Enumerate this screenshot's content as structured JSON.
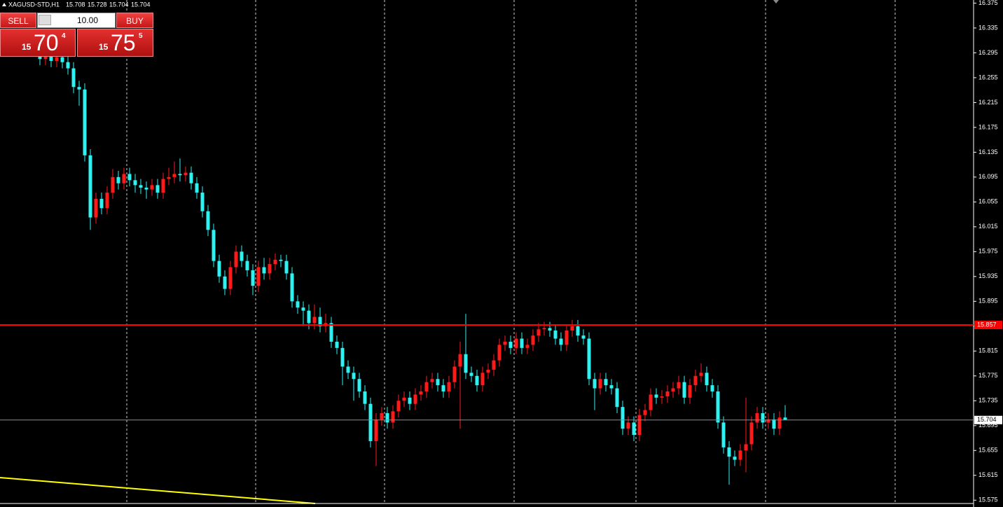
{
  "chart_data": {
    "type": "candlestick",
    "title": "XAGUSD-STD,H1",
    "open": [
      16.29,
      16.285,
      16.29,
      16.282,
      16.288,
      16.28,
      16.27,
      16.24,
      16.236,
      16.13,
      16.03,
      16.06,
      16.045,
      16.07,
      16.095,
      16.085,
      16.1,
      16.09,
      16.082,
      16.078,
      16.075,
      16.082,
      16.07,
      16.092,
      16.095,
      16.1,
      16.098,
      16.102,
      16.085,
      16.07,
      16.04,
      16.01,
      15.96,
      15.935,
      15.915,
      15.95,
      15.975,
      15.96,
      15.945,
      15.92,
      15.95,
      15.94,
      15.955,
      15.962,
      15.96,
      15.94,
      15.895,
      15.885,
      15.88,
      15.86,
      15.87,
      15.855,
      15.86,
      15.83,
      15.82,
      15.79,
      15.78,
      15.77,
      15.75,
      15.73,
      15.67,
      15.705,
      15.715,
      15.7,
      15.718,
      15.735,
      15.74,
      15.73,
      15.745,
      15.75,
      15.765,
      15.77,
      15.76,
      15.75,
      15.765,
      15.79,
      15.81,
      15.78,
      15.775,
      15.76,
      15.78,
      15.785,
      15.8,
      15.825,
      15.83,
      15.82,
      15.835,
      15.82,
      15.825,
      15.84,
      15.85,
      15.852,
      15.848,
      15.835,
      15.825,
      15.848,
      15.855,
      15.84,
      15.835,
      15.77,
      15.755,
      15.77,
      15.76,
      15.755,
      15.725,
      15.69,
      15.7,
      15.68,
      15.712,
      15.72,
      15.745,
      15.74,
      15.742,
      15.75,
      15.755,
      15.765,
      15.74,
      15.76,
      15.775,
      15.78,
      15.76,
      15.75,
      15.7,
      15.66,
      15.645,
      15.64,
      15.655,
      15.665,
      15.7,
      15.715,
      15.7,
      15.705,
      15.69,
      15.708
    ],
    "high": [
      16.3,
      16.3,
      16.3,
      16.298,
      16.298,
      16.29,
      16.28,
      16.25,
      16.246,
      16.14,
      16.07,
      16.07,
      16.08,
      16.108,
      16.105,
      16.11,
      16.11,
      16.1,
      16.092,
      16.088,
      16.092,
      16.092,
      16.102,
      16.11,
      16.12,
      16.125,
      16.112,
      16.112,
      16.095,
      16.08,
      16.05,
      16.02,
      15.97,
      15.945,
      15.96,
      15.985,
      15.985,
      15.97,
      15.955,
      15.96,
      15.965,
      15.965,
      15.972,
      15.97,
      15.97,
      15.95,
      15.905,
      15.895,
      15.89,
      15.89,
      15.885,
      15.875,
      15.87,
      15.84,
      15.83,
      15.8,
      15.79,
      15.78,
      15.76,
      15.74,
      15.715,
      15.725,
      15.725,
      15.728,
      15.745,
      15.75,
      15.75,
      15.755,
      15.76,
      15.775,
      15.78,
      15.78,
      15.77,
      15.775,
      15.8,
      15.83,
      15.875,
      15.79,
      15.785,
      15.79,
      15.795,
      15.81,
      15.835,
      15.84,
      15.84,
      15.845,
      15.845,
      15.835,
      15.85,
      15.86,
      15.862,
      15.862,
      15.858,
      15.845,
      15.858,
      15.865,
      15.865,
      15.85,
      15.845,
      15.78,
      15.78,
      15.78,
      15.77,
      15.765,
      15.735,
      15.71,
      15.71,
      15.722,
      15.73,
      15.755,
      15.755,
      15.752,
      15.76,
      15.765,
      15.775,
      15.775,
      15.77,
      15.785,
      15.795,
      15.79,
      15.77,
      15.76,
      15.71,
      15.67,
      15.655,
      15.665,
      15.74,
      15.71,
      15.725,
      15.725,
      15.715,
      15.715,
      15.718,
      15.728
    ],
    "low": [
      16.275,
      16.275,
      16.272,
      16.272,
      16.27,
      16.26,
      16.23,
      16.21,
      16.12,
      16.01,
      16.02,
      16.035,
      16.035,
      16.06,
      16.075,
      16.075,
      16.08,
      16.07,
      16.068,
      16.06,
      16.065,
      16.06,
      16.06,
      16.082,
      16.085,
      16.088,
      16.088,
      16.075,
      16.06,
      16.03,
      16.0,
      15.95,
      15.925,
      15.905,
      15.905,
      15.94,
      15.95,
      15.935,
      15.905,
      15.91,
      15.93,
      15.93,
      15.945,
      15.95,
      15.93,
      15.885,
      15.875,
      15.855,
      15.85,
      15.85,
      15.845,
      15.845,
      15.82,
      15.81,
      15.76,
      15.77,
      15.735,
      15.74,
      15.72,
      15.66,
      15.63,
      15.695,
      15.69,
      15.69,
      15.708,
      15.725,
      15.72,
      15.72,
      15.735,
      15.74,
      15.755,
      15.75,
      15.74,
      15.74,
      15.755,
      15.69,
      15.77,
      15.765,
      15.75,
      15.75,
      15.77,
      15.775,
      15.79,
      15.815,
      15.81,
      15.81,
      15.81,
      15.81,
      15.815,
      15.83,
      15.84,
      15.838,
      15.825,
      15.815,
      15.815,
      15.838,
      15.83,
      15.825,
      15.76,
      15.72,
      15.745,
      15.75,
      15.745,
      15.715,
      15.68,
      15.68,
      15.67,
      15.67,
      15.702,
      15.71,
      15.73,
      15.73,
      15.732,
      15.74,
      15.745,
      15.73,
      15.73,
      15.75,
      15.765,
      15.75,
      15.74,
      15.69,
      15.65,
      15.6,
      15.63,
      15.63,
      15.62,
      15.655,
      15.69,
      15.69,
      15.69,
      15.68,
      15.68,
      15.704
    ],
    "close": [
      16.285,
      16.29,
      16.282,
      16.288,
      16.28,
      16.27,
      16.24,
      16.236,
      16.13,
      16.03,
      16.06,
      16.045,
      16.07,
      16.095,
      16.085,
      16.1,
      16.09,
      16.082,
      16.078,
      16.075,
      16.082,
      16.07,
      16.092,
      16.095,
      16.1,
      16.098,
      16.102,
      16.085,
      16.07,
      16.04,
      16.01,
      15.96,
      15.935,
      15.915,
      15.95,
      15.975,
      15.96,
      15.945,
      15.92,
      15.95,
      15.94,
      15.955,
      15.962,
      15.96,
      15.94,
      15.895,
      15.885,
      15.88,
      15.86,
      15.87,
      15.855,
      15.86,
      15.83,
      15.82,
      15.79,
      15.78,
      15.77,
      15.75,
      15.73,
      15.67,
      15.705,
      15.715,
      15.7,
      15.718,
      15.735,
      15.74,
      15.73,
      15.745,
      15.75,
      15.765,
      15.77,
      15.76,
      15.75,
      15.765,
      15.79,
      15.81,
      15.78,
      15.775,
      15.76,
      15.78,
      15.785,
      15.8,
      15.825,
      15.83,
      15.82,
      15.835,
      15.82,
      15.825,
      15.84,
      15.85,
      15.852,
      15.848,
      15.835,
      15.825,
      15.848,
      15.855,
      15.84,
      15.835,
      15.77,
      15.755,
      15.77,
      15.76,
      15.755,
      15.725,
      15.69,
      15.7,
      15.68,
      15.712,
      15.72,
      15.745,
      15.74,
      15.742,
      15.75,
      15.755,
      15.765,
      15.74,
      15.76,
      15.775,
      15.78,
      15.76,
      15.75,
      15.7,
      15.66,
      15.645,
      15.64,
      15.655,
      15.665,
      15.7,
      15.715,
      15.7,
      15.705,
      15.69,
      15.708,
      15.704
    ],
    "up_color": "#ff1a1a",
    "down_color": "#2ef2f2",
    "bid_line_color": "#7f8fa0",
    "ylim": [
      15.564,
      16.38
    ],
    "yticks": [
      16.375,
      16.335,
      16.295,
      16.255,
      16.215,
      16.175,
      16.135,
      16.095,
      16.055,
      16.015,
      15.975,
      15.935,
      15.895,
      15.855,
      15.815,
      15.775,
      15.735,
      15.695,
      15.655,
      15.615,
      15.575
    ],
    "grid": false,
    "hlines": [
      {
        "value": 15.857,
        "color": "#ff0000"
      }
    ]
  },
  "trade_panel": {
    "sell": "SELL",
    "buy": "BUY",
    "volume": "10.00",
    "sell_price": [
      "15",
      "70",
      "4"
    ],
    "buy_price": [
      "15",
      "75",
      "5"
    ]
  }
}
